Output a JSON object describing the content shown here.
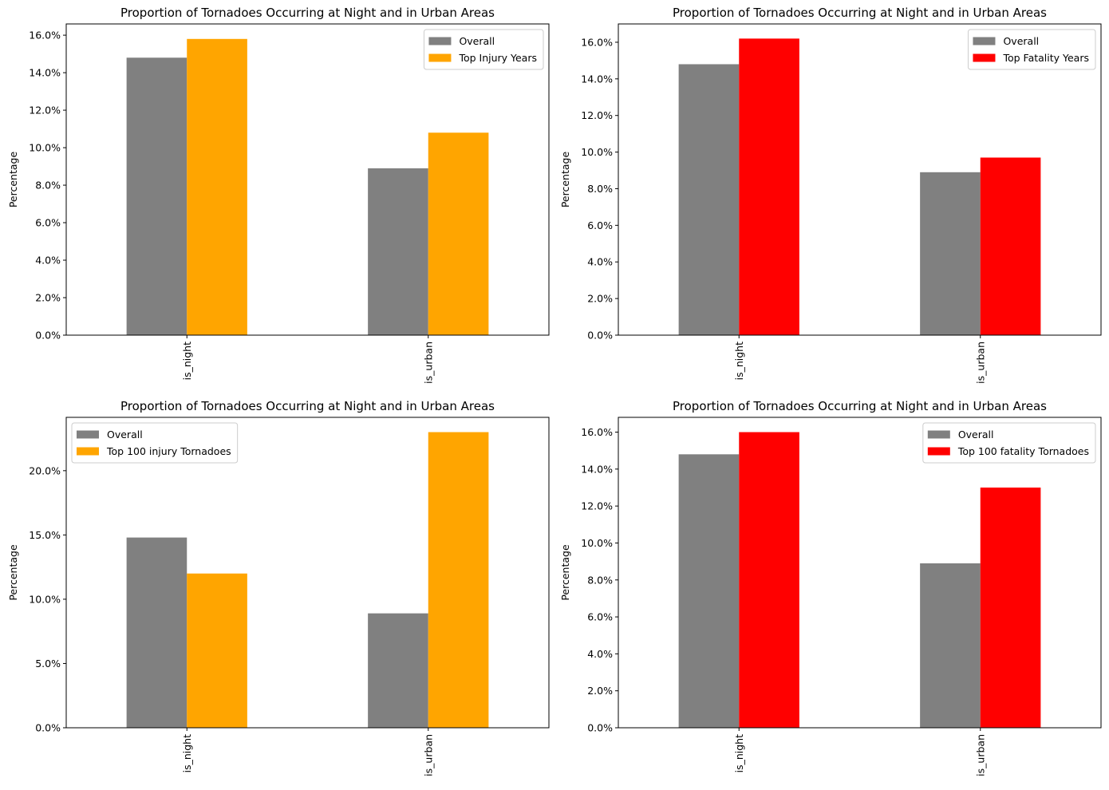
{
  "figure": {
    "bg_color": "#ffffff",
    "series_colors": {
      "overall": "#808080",
      "orange": "#ffa500",
      "red": "#ff0000"
    }
  },
  "chart_data": [
    {
      "type": "bar",
      "title": "Proportion of Tornadoes Occurring at Night and in Urban Areas",
      "xlabel": "",
      "ylabel": "Percentage",
      "categories": [
        "is_night",
        "is_urban"
      ],
      "series": [
        {
          "name": "Overall",
          "values": [
            14.8,
            8.9
          ],
          "color": "#808080"
        },
        {
          "name": "Top Injury Years",
          "values": [
            15.8,
            10.8
          ],
          "color": "#ffa500"
        }
      ],
      "ylim": [
        0,
        16.6
      ],
      "yticks": [
        0,
        2,
        4,
        6,
        8,
        10,
        12,
        14,
        16
      ],
      "ytick_labels": [
        "0.0%",
        "2.0%",
        "4.0%",
        "6.0%",
        "8.0%",
        "10.0%",
        "12.0%",
        "14.0%",
        "16.0%"
      ],
      "legend_position": "top-right"
    },
    {
      "type": "bar",
      "title": "Proportion of Tornadoes Occurring at Night and in Urban Areas",
      "xlabel": "",
      "ylabel": "Percentage",
      "categories": [
        "is_night",
        "is_urban"
      ],
      "series": [
        {
          "name": "Overall",
          "values": [
            14.8,
            8.9
          ],
          "color": "#808080"
        },
        {
          "name": "Top Fatality Years",
          "values": [
            16.2,
            9.7
          ],
          "color": "#ff0000"
        }
      ],
      "ylim": [
        0,
        17.0
      ],
      "yticks": [
        0,
        2,
        4,
        6,
        8,
        10,
        12,
        14,
        16
      ],
      "ytick_labels": [
        "0.0%",
        "2.0%",
        "4.0%",
        "6.0%",
        "8.0%",
        "10.0%",
        "12.0%",
        "14.0%",
        "16.0%"
      ],
      "legend_position": "top-right"
    },
    {
      "type": "bar",
      "title": "Proportion of Tornadoes Occurring at Night and in Urban Areas",
      "xlabel": "",
      "ylabel": "Percentage",
      "categories": [
        "is_night",
        "is_urban"
      ],
      "series": [
        {
          "name": "Overall",
          "values": [
            14.8,
            8.9
          ],
          "color": "#808080"
        },
        {
          "name": "Top 100 injury Tornadoes",
          "values": [
            12.0,
            23.0
          ],
          "color": "#ffa500"
        }
      ],
      "ylim": [
        0,
        24.15
      ],
      "yticks": [
        0,
        5,
        10,
        15,
        20
      ],
      "ytick_labels": [
        "0.0%",
        "5.0%",
        "10.0%",
        "15.0%",
        "20.0%"
      ],
      "legend_position": "top-left"
    },
    {
      "type": "bar",
      "title": "Proportion of Tornadoes Occurring at Night and in Urban Areas",
      "xlabel": "",
      "ylabel": "Percentage",
      "categories": [
        "is_night",
        "is_urban"
      ],
      "series": [
        {
          "name": "Overall",
          "values": [
            14.8,
            8.9
          ],
          "color": "#808080"
        },
        {
          "name": "Top 100 fatality Tornadoes",
          "values": [
            16.0,
            13.0
          ],
          "color": "#ff0000"
        }
      ],
      "ylim": [
        0,
        16.8
      ],
      "yticks": [
        0,
        2,
        4,
        6,
        8,
        10,
        12,
        14,
        16
      ],
      "ytick_labels": [
        "0.0%",
        "2.0%",
        "4.0%",
        "6.0%",
        "8.0%",
        "10.0%",
        "12.0%",
        "14.0%",
        "16.0%"
      ],
      "legend_position": "top-right"
    }
  ]
}
